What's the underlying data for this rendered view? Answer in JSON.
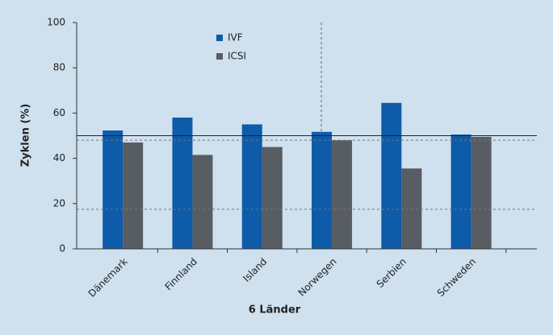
{
  "chart_data": {
    "type": "bar",
    "x_label": "6 Länder",
    "y_label": "Zyklen (%)",
    "categories": [
      "Dänemark",
      "Finnland",
      "Island",
      "Norwegen",
      "Serbien",
      "Schweden"
    ],
    "series": [
      {
        "name": "IVF",
        "color": "#0d5ba9",
        "values": [
          52.3,
          58,
          55,
          51.7,
          64.5,
          50.5
        ]
      },
      {
        "name": "ICSI",
        "color": "#585d63",
        "values": [
          47,
          41.5,
          45,
          48,
          35.5,
          49.5
        ]
      }
    ],
    "ylim": [
      0,
      100
    ],
    "yticks": [
      0,
      20,
      40,
      60,
      80,
      100
    ],
    "reference_lines": [
      {
        "value": 50,
        "style": "solid"
      },
      {
        "value": 48,
        "style": "dashed"
      },
      {
        "value": 17.5,
        "style": "dashed"
      }
    ],
    "legend": "top-center"
  }
}
